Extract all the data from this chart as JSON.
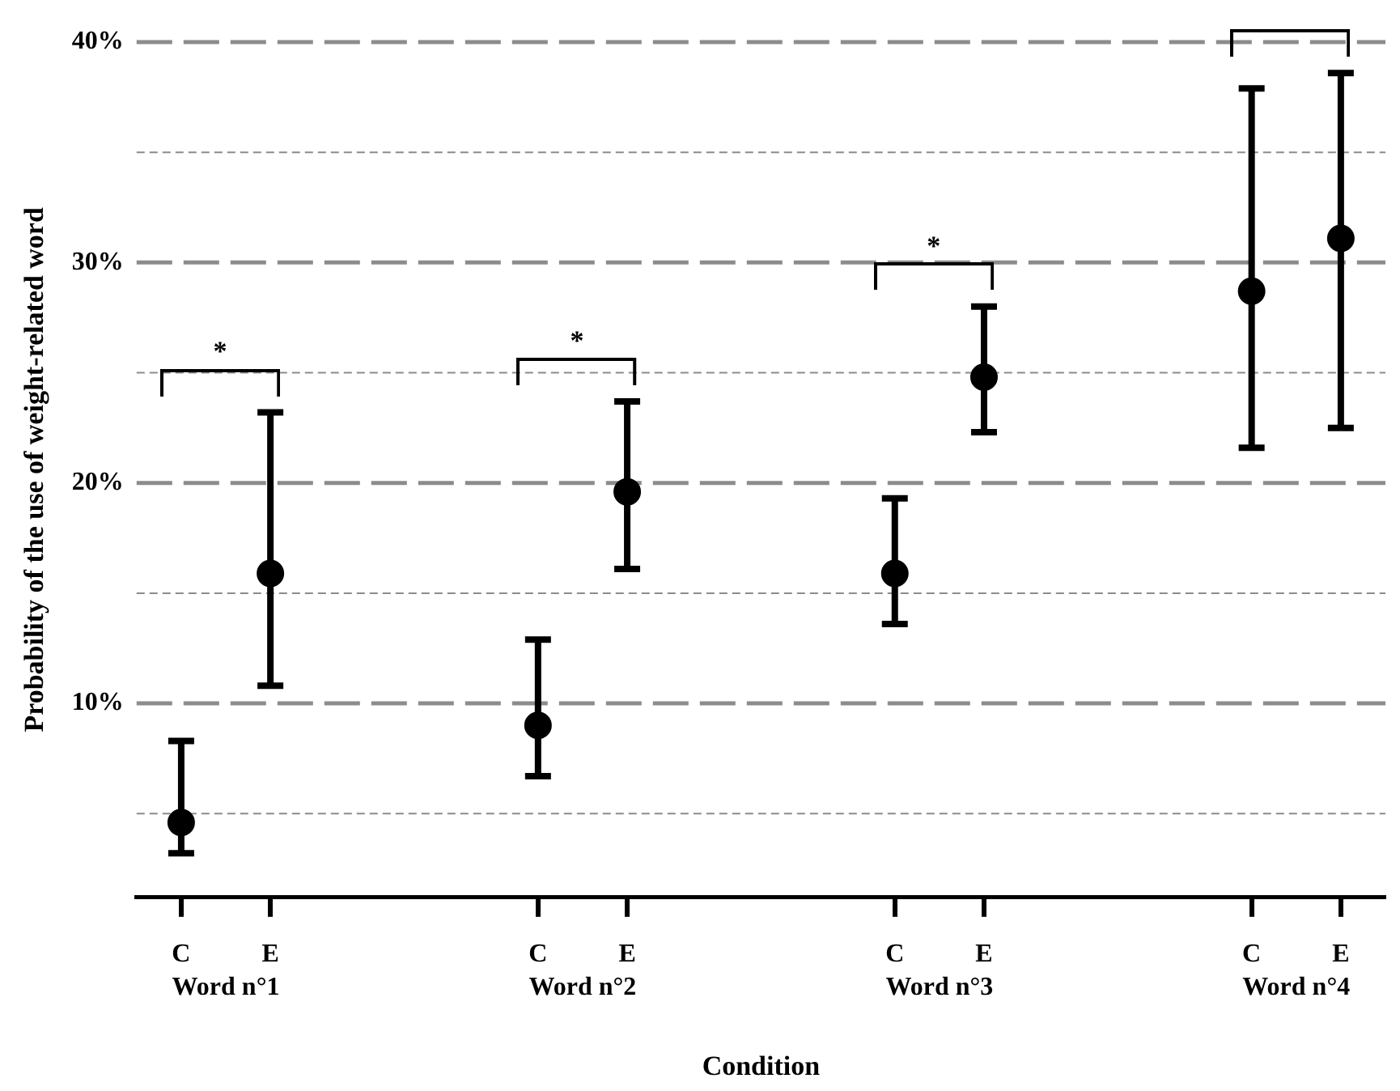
{
  "chart_data": {
    "type": "scatter",
    "xlabel": "Condition",
    "ylabel": "Probability of the use of weight-related word",
    "categories": [
      "C",
      "E",
      null,
      null,
      "C",
      "E",
      null,
      null,
      "C",
      "E",
      null,
      null,
      "C",
      "E"
    ],
    "values": [
      4.6,
      15.9,
      null,
      null,
      9.0,
      19.6,
      null,
      null,
      15.9,
      24.8,
      null,
      null,
      28.7,
      31.1
    ],
    "errors": [
      [
        3.2,
        8.3
      ],
      [
        10.8,
        23.2
      ],
      null,
      null,
      [
        6.7,
        12.9
      ],
      [
        16.1,
        23.7
      ],
      null,
      null,
      [
        13.6,
        19.3
      ],
      [
        22.3,
        28.0
      ],
      null,
      null,
      [
        21.6,
        37.9
      ],
      [
        22.5,
        38.6
      ]
    ],
    "color": "#000000",
    "marker": "circle",
    "ylim": [
      1.2,
      40
    ],
    "yticks": [
      {
        "value": 5,
        "label": null
      },
      {
        "value": 10,
        "label": "10%"
      },
      {
        "value": 15,
        "label": null
      },
      {
        "value": 20,
        "label": "20%"
      },
      {
        "value": 25,
        "label": null
      },
      {
        "value": 30,
        "label": "30%"
      },
      {
        "value": 35,
        "label": null
      },
      {
        "value": 40,
        "label": "40%"
      }
    ],
    "grid": "y",
    "legend": false,
    "annotations": [
      "Word n°1",
      "Word n°2",
      "Word n°3",
      "Word n°4",
      "*",
      "*",
      "*"
    ]
  }
}
